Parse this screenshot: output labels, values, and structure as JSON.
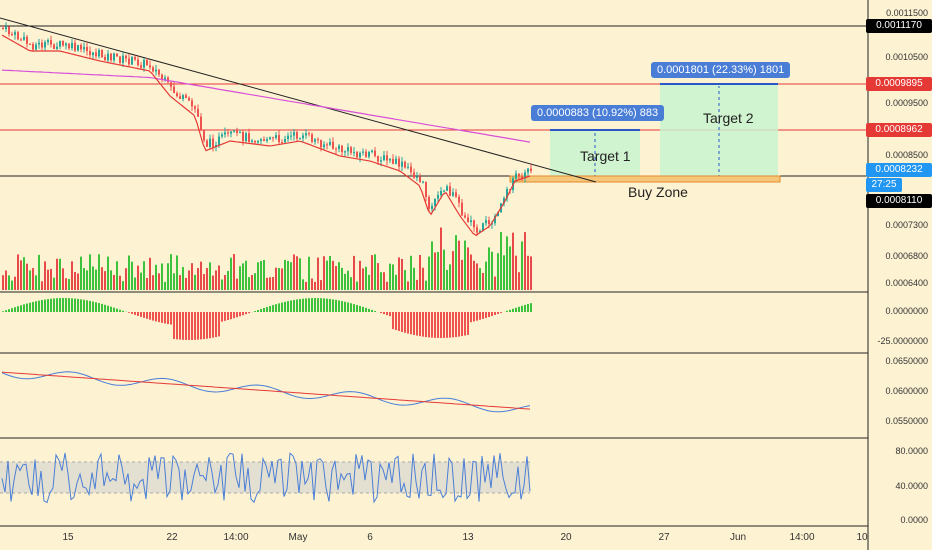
{
  "price_axis": {
    "labels": [
      "0.0011500",
      "0.0010500",
      "0.0009500",
      "0.0008500",
      "0.0007300",
      "0.0006800",
      "0.0006400"
    ],
    "tags": [
      {
        "value": "0.0011170",
        "bg": "#000000",
        "fg": "#ffffff"
      },
      {
        "value": "0.0009895",
        "bg": "#e53935",
        "fg": "#ffffff"
      },
      {
        "value": "0.0008962",
        "bg": "#e53935",
        "fg": "#ffffff"
      },
      {
        "value": "0.0008232",
        "bg": "#2196f3",
        "fg": "#ffffff"
      },
      {
        "value": "27:25",
        "bg": "#2196f3",
        "fg": "#ffffff"
      },
      {
        "value": "0.0008110",
        "bg": "#000000",
        "fg": "#ffffff"
      }
    ]
  },
  "macd_axis": {
    "labels": [
      "0.0000000",
      "-25.0000000"
    ]
  },
  "middle_axis": {
    "labels": [
      "0.0650000",
      "0.0600000",
      "0.0550000"
    ]
  },
  "rsi_axis": {
    "labels": [
      "80.0000",
      "40.0000",
      "0.0000"
    ]
  },
  "time_axis": {
    "labels": [
      "15",
      "22",
      "14:00",
      "May",
      "6",
      "13",
      "20",
      "27",
      "Jun",
      "14:00",
      "10"
    ]
  },
  "targets": {
    "target1": {
      "callout": "0.0000883 (10.92%) 883",
      "label": "Target 1"
    },
    "target2": {
      "callout": "0.0001801 (22.33%) 1801",
      "label": "Target 2"
    },
    "buy_zone": "Buy Zone"
  },
  "colors": {
    "background": "#fdf3d3",
    "candle_up": "#26a69a",
    "candle_down": "#ef5350",
    "ma_purple": "#d94fd9",
    "ma_red": "#e53935",
    "volume_up": "#3cc23c",
    "volume_down": "#e84a4a",
    "rsi_line": "#4a7ed6"
  }
}
